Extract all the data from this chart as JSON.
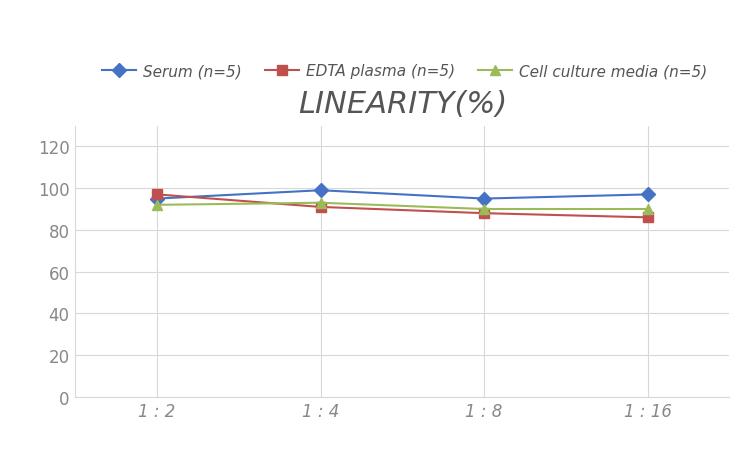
{
  "title": "LINEARITY(%)",
  "x_labels": [
    "1 : 2",
    "1 : 4",
    "1 : 8",
    "1 : 16"
  ],
  "x_positions": [
    0,
    1,
    2,
    3
  ],
  "series": [
    {
      "label": "Serum (n=5)",
      "values": [
        95,
        99,
        95,
        97
      ],
      "color": "#4472C4",
      "marker": "D",
      "linewidth": 1.5
    },
    {
      "label": "EDTA plasma (n=5)",
      "values": [
        97,
        91,
        88,
        86
      ],
      "color": "#C0504D",
      "marker": "s",
      "linewidth": 1.5
    },
    {
      "label": "Cell culture media (n=5)",
      "values": [
        92,
        93,
        90,
        90
      ],
      "color": "#9BBB59",
      "marker": "^",
      "linewidth": 1.5
    }
  ],
  "ylim": [
    0,
    130
  ],
  "yticks": [
    0,
    20,
    40,
    60,
    80,
    100,
    120
  ],
  "background_color": "#ffffff",
  "grid_color": "#d8d8d8",
  "title_fontsize": 22,
  "legend_fontsize": 11,
  "tick_fontsize": 12,
  "tick_color": "#888888"
}
